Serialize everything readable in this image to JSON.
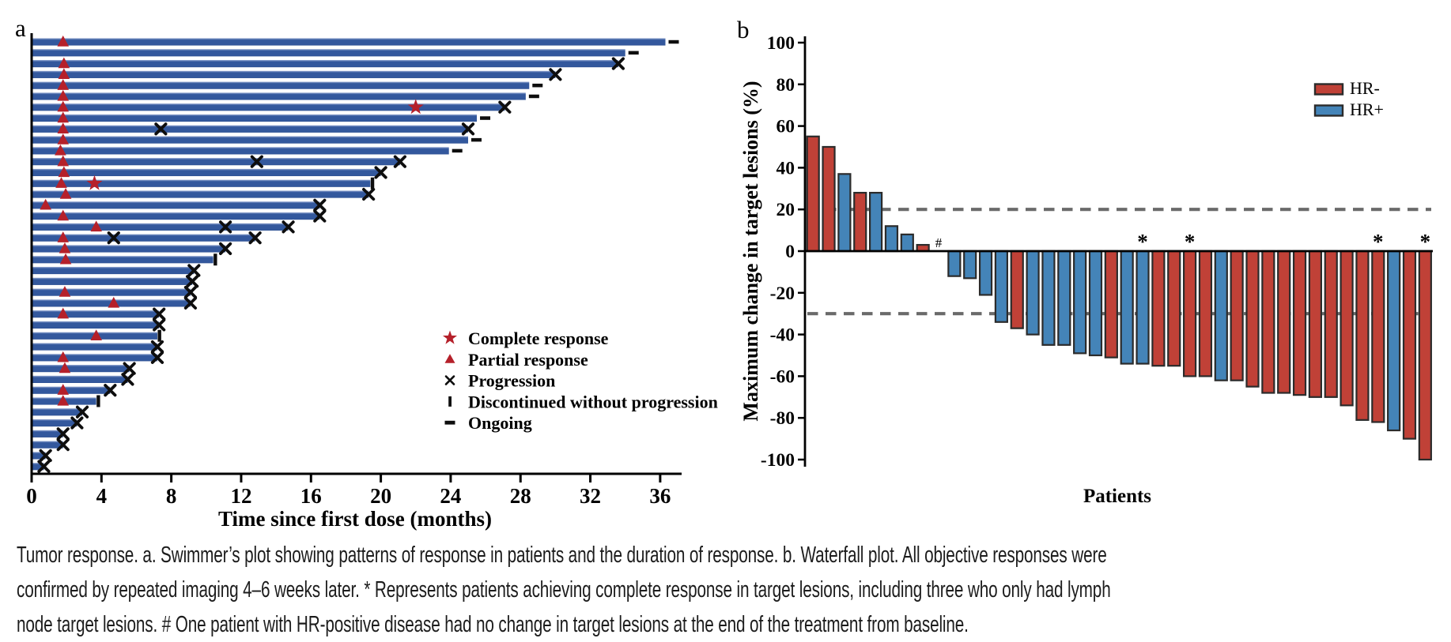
{
  "figure_title": "Tumor response",
  "caption": {
    "lines": [
      "Tumor response. a. Swimmer’s plot showing patterns of response in patients and the duration of response. b. Waterfall plot. All objective responses were",
      "confirmed by repeated imaging 4–6 weeks later. * Represents patients achieving complete response in target lesions, including three who only had lymph",
      "node target lesions. # One patient with HR-positive disease had no change in target lesions at the end of the treatment from baseline."
    ]
  },
  "colors": {
    "swimmer_bar": "#33589d",
    "swimmer_bar_highlight": "#98abd4",
    "marker_red": "#b5202a",
    "hr_neg_red": "#c04137",
    "hr_pos_blue": "#4484b8",
    "bar_stroke": "#2b2b2b",
    "ref_line_gray": "#6a6a6a",
    "ink": "#0e0e0e"
  },
  "chart_data": [
    {
      "type": "bar",
      "variant": "swimmer",
      "panel_label": "a",
      "xlabel": "Time since first dose (months)",
      "x_ticks": [
        0,
        4,
        8,
        12,
        16,
        20,
        24,
        28,
        32,
        36
      ],
      "xlim": [
        0,
        37.2
      ],
      "grid": false,
      "legend_position": "right-middle",
      "legend": [
        {
          "symbol": "star",
          "label": "Complete response"
        },
        {
          "symbol": "triangle",
          "label": "Partial response"
        },
        {
          "symbol": "x",
          "label": "Progression"
        },
        {
          "symbol": "bar",
          "label": "Discontinued without progression"
        },
        {
          "symbol": "dash",
          "label": "Ongoing"
        }
      ],
      "bars": [
        {
          "end": 36.3,
          "end_marker": "ongoing",
          "triangle": 1.8
        },
        {
          "end": 34.0,
          "end_marker": "ongoing"
        },
        {
          "end": 33.6,
          "end_marker": "x",
          "triangle": 1.85
        },
        {
          "end": 30.0,
          "end_marker": "x",
          "triangle": 1.85
        },
        {
          "end": 28.5,
          "end_marker": "ongoing",
          "triangle": 1.8
        },
        {
          "end": 28.3,
          "end_marker": "ongoing",
          "triangle": 1.8
        },
        {
          "end": 27.1,
          "end_marker": "x",
          "triangle": 1.8,
          "star": 22.0
        },
        {
          "end": 25.5,
          "end_marker": "ongoing",
          "triangle": 1.8
        },
        {
          "end": 25.0,
          "end_marker": "x",
          "triangle": 1.8,
          "x_marks": [
            7.4
          ]
        },
        {
          "end": 25.0,
          "end_marker": "ongoing",
          "triangle": 1.8
        },
        {
          "end": 23.9,
          "end_marker": "ongoing",
          "triangle": 1.65
        },
        {
          "end": 21.1,
          "end_marker": "x",
          "triangle": 1.8,
          "x_marks": [
            12.9
          ]
        },
        {
          "end": 20.0,
          "end_marker": "x",
          "triangle": 1.85
        },
        {
          "end": 19.4,
          "end_marker": "disc",
          "triangle": 1.7,
          "star": 3.6
        },
        {
          "end": 19.3,
          "end_marker": "x",
          "triangle": 1.95
        },
        {
          "end": 16.5,
          "end_marker": "x",
          "triangle": 0.8
        },
        {
          "end": 16.5,
          "end_marker": "x",
          "triangle": 1.8
        },
        {
          "end": 14.7,
          "end_marker": "x",
          "triangle": 3.7,
          "x_marks": [
            11.1
          ]
        },
        {
          "end": 12.8,
          "end_marker": "x",
          "triangle": 1.8,
          "x_marks": [
            4.7
          ]
        },
        {
          "end": 11.1,
          "end_marker": "x",
          "triangle": 1.9
        },
        {
          "end": 10.4,
          "end_marker": "disc",
          "triangle": 1.95
        },
        {
          "end": 9.3,
          "end_marker": "x"
        },
        {
          "end": 9.2,
          "end_marker": "x"
        },
        {
          "end": 9.1,
          "end_marker": "x",
          "triangle": 1.9
        },
        {
          "end": 9.1,
          "end_marker": "x",
          "triangle": 4.7
        },
        {
          "end": 7.3,
          "end_marker": "x",
          "triangle": 1.8
        },
        {
          "end": 7.3,
          "end_marker": "x"
        },
        {
          "end": 7.2,
          "end_marker": "disc",
          "triangle": 3.7
        },
        {
          "end": 7.2,
          "end_marker": "x"
        },
        {
          "end": 7.2,
          "end_marker": "x",
          "triangle": 1.8
        },
        {
          "end": 5.6,
          "end_marker": "x",
          "triangle": 1.9
        },
        {
          "end": 5.5,
          "end_marker": "x"
        },
        {
          "end": 4.5,
          "end_marker": "x",
          "triangle": 1.8
        },
        {
          "end": 3.7,
          "end_marker": "disc",
          "triangle": 1.8
        },
        {
          "end": 2.9,
          "end_marker": "x"
        },
        {
          "end": 2.6,
          "end_marker": "x"
        },
        {
          "end": 1.8,
          "end_marker": "x"
        },
        {
          "end": 1.8,
          "end_marker": "x"
        },
        {
          "end": 0.8,
          "end_marker": "x"
        },
        {
          "end": 0.7,
          "end_marker": "x"
        }
      ]
    },
    {
      "type": "bar",
      "variant": "waterfall",
      "panel_label": "b",
      "ylabel": "Maximum change in target lesions (%)",
      "xlabel": "Patients",
      "y_ticks": [
        100,
        80,
        60,
        40,
        20,
        0,
        -20,
        -40,
        -60,
        -80,
        -100
      ],
      "ylim": [
        -100,
        100
      ],
      "grid": false,
      "ref_lines": [
        20,
        -30
      ],
      "legend_position": "top-right",
      "legend": [
        {
          "label": "HR-",
          "color": "#c04137"
        },
        {
          "label": "HR+",
          "color": "#4484b8"
        }
      ],
      "patients": [
        {
          "value": 55,
          "group": "HR-"
        },
        {
          "value": 50,
          "group": "HR-"
        },
        {
          "value": 37,
          "group": "HR+"
        },
        {
          "value": 28,
          "group": "HR-"
        },
        {
          "value": 28,
          "group": "HR+"
        },
        {
          "value": 12,
          "group": "HR+"
        },
        {
          "value": 8,
          "group": "HR+"
        },
        {
          "value": 3,
          "group": "HR-"
        },
        {
          "value": 0,
          "group": "HR+",
          "mark": "#"
        },
        {
          "value": -12,
          "group": "HR+"
        },
        {
          "value": -13,
          "group": "HR+"
        },
        {
          "value": -21,
          "group": "HR+"
        },
        {
          "value": -34,
          "group": "HR+"
        },
        {
          "value": -37,
          "group": "HR-"
        },
        {
          "value": -40,
          "group": "HR+"
        },
        {
          "value": -45,
          "group": "HR+"
        },
        {
          "value": -45,
          "group": "HR+"
        },
        {
          "value": -49,
          "group": "HR+"
        },
        {
          "value": -50,
          "group": "HR+"
        },
        {
          "value": -51,
          "group": "HR-"
        },
        {
          "value": -54,
          "group": "HR+"
        },
        {
          "value": -54,
          "group": "HR+",
          "mark": "*"
        },
        {
          "value": -55,
          "group": "HR-"
        },
        {
          "value": -55,
          "group": "HR-"
        },
        {
          "value": -60,
          "group": "HR-",
          "mark": "*"
        },
        {
          "value": -60,
          "group": "HR-"
        },
        {
          "value": -62,
          "group": "HR+"
        },
        {
          "value": -62,
          "group": "HR-"
        },
        {
          "value": -65,
          "group": "HR-"
        },
        {
          "value": -68,
          "group": "HR-"
        },
        {
          "value": -68,
          "group": "HR-"
        },
        {
          "value": -69,
          "group": "HR-"
        },
        {
          "value": -70,
          "group": "HR-"
        },
        {
          "value": -70,
          "group": "HR-"
        },
        {
          "value": -74,
          "group": "HR-"
        },
        {
          "value": -81,
          "group": "HR-"
        },
        {
          "value": -82,
          "group": "HR-",
          "mark": "*"
        },
        {
          "value": -86,
          "group": "HR+"
        },
        {
          "value": -90,
          "group": "HR-"
        },
        {
          "value": -100,
          "group": "HR-",
          "mark": "*"
        }
      ]
    }
  ]
}
